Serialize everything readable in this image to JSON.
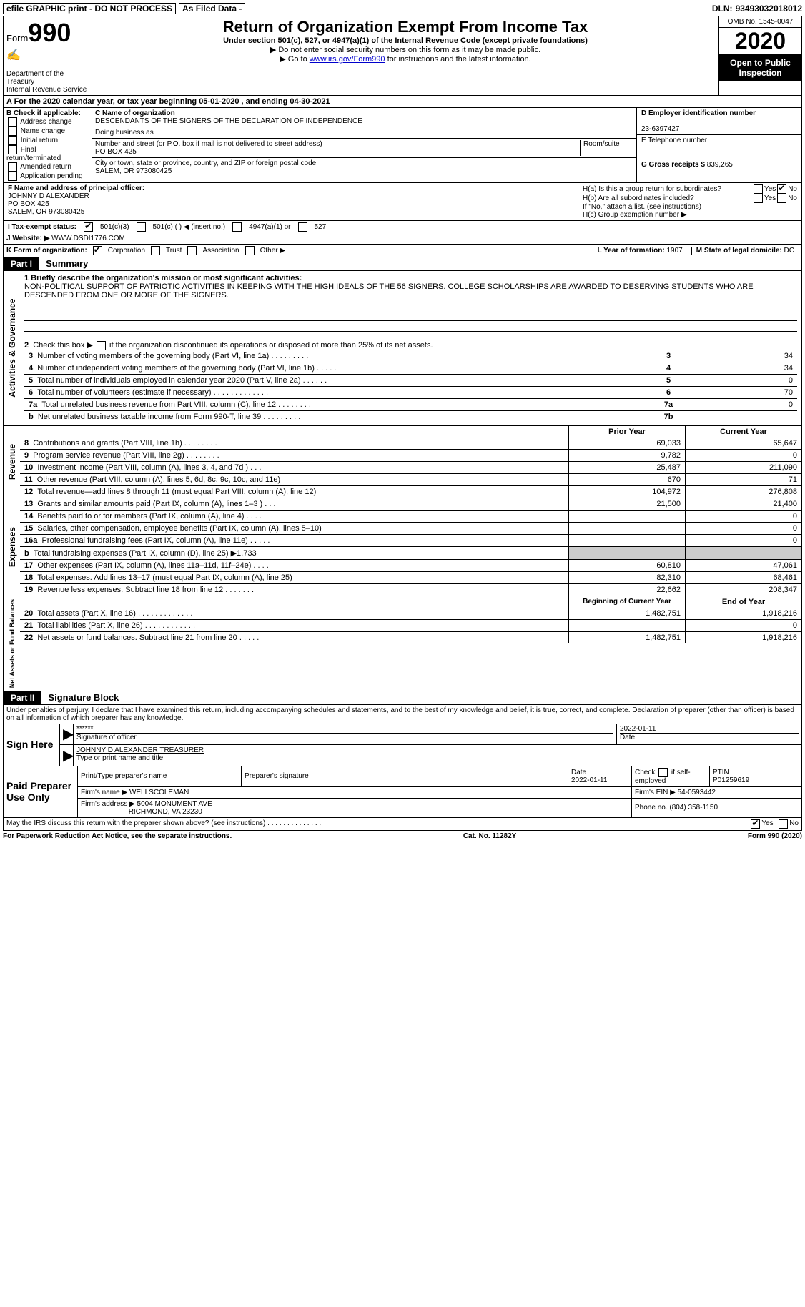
{
  "topbar": {
    "efile": "efile GRAPHIC print - DO NOT PROCESS",
    "asfiled": "As Filed Data -",
    "dln_lbl": "DLN:",
    "dln": "93493032018012"
  },
  "header": {
    "form_lbl": "Form",
    "form_no": "990",
    "dept": "Department of the Treasury",
    "irs": "Internal Revenue Service",
    "title": "Return of Organization Exempt From Income Tax",
    "sub1": "Under section 501(c), 527, or 4947(a)(1) of the Internal Revenue Code (except private foundations)",
    "sub2": "▶ Do not enter social security numbers on this form as it may be made public.",
    "sub3_pre": "▶ Go to ",
    "sub3_link": "www.irs.gov/Form990",
    "sub3_post": " for instructions and the latest information.",
    "omb": "OMB No. 1545-0047",
    "year": "2020",
    "open": "Open to Public Inspection"
  },
  "rowA": "A   For the 2020 calendar year, or tax year beginning 05-01-2020   , and ending 04-30-2021",
  "B": {
    "lbl": "B Check if applicable:",
    "items": [
      "Address change",
      "Name change",
      "Initial return",
      "Final return/terminated",
      "Amended return",
      "Application pending"
    ]
  },
  "C": {
    "name_lbl": "C Name of organization",
    "name": "DESCENDANTS OF THE SIGNERS OF THE DECLARATION OF INDEPENDENCE",
    "dba_lbl": "Doing business as",
    "addr_lbl": "Number and street (or P.O. box if mail is not delivered to street address)",
    "room_lbl": "Room/suite",
    "addr": "PO BOX 425",
    "city_lbl": "City or town, state or province, country, and ZIP or foreign postal code",
    "city": "SALEM, OR  973080425"
  },
  "D": {
    "lbl": "D Employer identification number",
    "val": "23-6397427"
  },
  "E": {
    "lbl": "E Telephone number"
  },
  "G": {
    "lbl": "G Gross receipts $",
    "val": "839,265"
  },
  "F": {
    "lbl": "F  Name and address of principal officer:",
    "line1": "JOHNNY D ALEXANDER",
    "line2": "PO BOX 425",
    "line3": "SALEM, OR  973080425"
  },
  "H": {
    "a": "H(a)  Is this a group return for subordinates?",
    "b": "H(b)  Are all subordinates included?",
    "note": "If \"No,\" attach a list. (see instructions)",
    "c": "H(c)  Group exemption number ▶",
    "yes": "Yes",
    "no": "No"
  },
  "I": {
    "lbl": "I   Tax-exempt status:",
    "o1": "501(c)(3)",
    "o2": "501(c) (   ) ◀ (insert no.)",
    "o3": "4947(a)(1) or",
    "o4": "527"
  },
  "J": {
    "lbl": "J   Website: ▶",
    "val": "WWW.DSDI1776.COM"
  },
  "K": {
    "lbl": "K Form of organization:",
    "o1": "Corporation",
    "o2": "Trust",
    "o3": "Association",
    "o4": "Other ▶"
  },
  "L": {
    "lbl": "L Year of formation:",
    "val": "1907"
  },
  "M": {
    "lbl": "M State of legal domicile:",
    "val": "DC"
  },
  "partI": {
    "hdr": "Part I",
    "title": "Summary"
  },
  "mission": {
    "lbl": "1 Briefly describe the organization's mission or most significant activities:",
    "text": "NON-POLITICAL SUPPORT OF PATRIOTIC ACTIVITIES IN KEEPING WITH THE HIGH IDEALS OF THE 56 SIGNERS. COLLEGE SCHOLARSHIPS ARE AWARDED TO DESERVING STUDENTS WHO ARE DESCENDED FROM ONE OR MORE OF THE SIGNERS."
  },
  "line2": "2   Check this box ▶  if the organization discontinued its operations or disposed of more than 25% of its net assets.",
  "govlines": [
    {
      "n": "3",
      "lbl": "Number of voting members of the governing body (Part VI, line 1a)  .   .   .   .   .   .   .   .   .",
      "nc": "3",
      "v": "34"
    },
    {
      "n": "4",
      "lbl": "Number of independent voting members of the governing body (Part VI, line 1b)   .   .   .   .   .",
      "nc": "4",
      "v": "34"
    },
    {
      "n": "5",
      "lbl": "Total number of individuals employed in calendar year 2020 (Part V, line 2a)   .   .   .   .   .   .",
      "nc": "5",
      "v": "0"
    },
    {
      "n": "6",
      "lbl": "Total number of volunteers (estimate if necessary)   .   .   .   .   .   .   .   .   .   .   .   .   .",
      "nc": "6",
      "v": "70"
    },
    {
      "n": "7a",
      "lbl": "Total unrelated business revenue from Part VIII, column (C), line 12   .   .   .   .   .   .   .   .",
      "nc": "7a",
      "v": "0"
    },
    {
      "n": "b",
      "lbl": "Net unrelated business taxable income from Form 990-T, line 39   .   .   .   .   .   .   .   .   .",
      "nc": "7b",
      "v": ""
    }
  ],
  "hdr_prior": "Prior Year",
  "hdr_curr": "Current Year",
  "revlines": [
    {
      "n": "8",
      "lbl": "Contributions and grants (Part VIII, line 1h)   .   .   .   .   .   .   .   .",
      "p": "69,033",
      "c": "65,647"
    },
    {
      "n": "9",
      "lbl": "Program service revenue (Part VIII, line 2g)   .   .   .   .   .   .   .   .",
      "p": "9,782",
      "c": "0"
    },
    {
      "n": "10",
      "lbl": "Investment income (Part VIII, column (A), lines 3, 4, and 7d )   .   .   .",
      "p": "25,487",
      "c": "211,090"
    },
    {
      "n": "11",
      "lbl": "Other revenue (Part VIII, column (A), lines 5, 6d, 8c, 9c, 10c, and 11e)",
      "p": "670",
      "c": "71"
    },
    {
      "n": "12",
      "lbl": "Total revenue—add lines 8 through 11 (must equal Part VIII, column (A), line 12)",
      "p": "104,972",
      "c": "276,808"
    }
  ],
  "explines": [
    {
      "n": "13",
      "lbl": "Grants and similar amounts paid (Part IX, column (A), lines 1–3 )   .   .   .",
      "p": "21,500",
      "c": "21,400"
    },
    {
      "n": "14",
      "lbl": "Benefits paid to or for members (Part IX, column (A), line 4)   .   .   .   .",
      "p": "",
      "c": "0"
    },
    {
      "n": "15",
      "lbl": "Salaries, other compensation, employee benefits (Part IX, column (A), lines 5–10)",
      "p": "",
      "c": "0"
    },
    {
      "n": "16a",
      "lbl": "Professional fundraising fees (Part IX, column (A), line 11e)   .   .   .   .   .",
      "p": "",
      "c": "0"
    },
    {
      "n": "b",
      "lbl": "Total fundraising expenses (Part IX, column (D), line 25) ▶1,733",
      "p": "grey",
      "c": "grey"
    },
    {
      "n": "17",
      "lbl": "Other expenses (Part IX, column (A), lines 11a–11d, 11f–24e)   .   .   .   .",
      "p": "60,810",
      "c": "47,061"
    },
    {
      "n": "18",
      "lbl": "Total expenses. Add lines 13–17 (must equal Part IX, column (A), line 25)",
      "p": "82,310",
      "c": "68,461"
    },
    {
      "n": "19",
      "lbl": "Revenue less expenses. Subtract line 18 from line 12   .   .   .   .   .   .   .",
      "p": "22,662",
      "c": "208,347"
    }
  ],
  "hdr_beg": "Beginning of Current Year",
  "hdr_end": "End of Year",
  "netlines": [
    {
      "n": "20",
      "lbl": "Total assets (Part X, line 16)   .   .   .   .   .   .   .   .   .   .   .   .   .",
      "p": "1,482,751",
      "c": "1,918,216"
    },
    {
      "n": "21",
      "lbl": "Total liabilities (Part X, line 26)   .   .   .   .   .   .   .   .   .   .   .   .",
      "p": "",
      "c": "0"
    },
    {
      "n": "22",
      "lbl": "Net assets or fund balances. Subtract line 21 from line 20   .   .   .   .   .",
      "p": "1,482,751",
      "c": "1,918,216"
    }
  ],
  "partII": {
    "hdr": "Part II",
    "title": "Signature Block"
  },
  "perjury": "Under penalties of perjury, I declare that I have examined this return, including accompanying schedules and statements, and to the best of my knowledge and belief, it is true, correct, and complete. Declaration of preparer (other than officer) is based on all information of which preparer has any knowledge.",
  "sign": {
    "here": "Sign Here",
    "stars": "******",
    "sigoff": "Signature of officer",
    "date": "2022-01-11",
    "datelbl": "Date",
    "name": "JOHNNY D ALEXANDER TREASURER",
    "typelbl": "Type or print name and title"
  },
  "prep": {
    "lbl": "Paid Preparer Use Only",
    "h1": "Print/Type preparer's name",
    "h2": "Preparer's signature",
    "h3_lbl": "Date",
    "h3": "2022-01-11",
    "h4_lbl": "Check",
    "h4_after": "if self-employed",
    "h5_lbl": "PTIN",
    "h5": "P01259619",
    "firmname_lbl": "Firm's name      ▶",
    "firmname": "WELLSCOLEMAN",
    "firmein_lbl": "Firm's EIN ▶",
    "firmein": "54-0593442",
    "firmaddr_lbl": "Firm's address ▶",
    "firmaddr1": "5004 MONUMENT AVE",
    "firmaddr2": "RICHMOND, VA  23230",
    "phone_lbl": "Phone no.",
    "phone": "(804) 358-1150"
  },
  "discuss": "May the IRS discuss this return with the preparer shown above? (see instructions)   .   .   .   .   .   .   .   .   .   .   .   .   .   .",
  "footer": {
    "l": "For Paperwork Reduction Act Notice, see the separate instructions.",
    "m": "Cat. No. 11282Y",
    "r": "Form 990 (2020)"
  },
  "sides": {
    "gov": "Activities & Governance",
    "rev": "Revenue",
    "exp": "Expenses",
    "net": "Net Assets or Fund Balances"
  }
}
